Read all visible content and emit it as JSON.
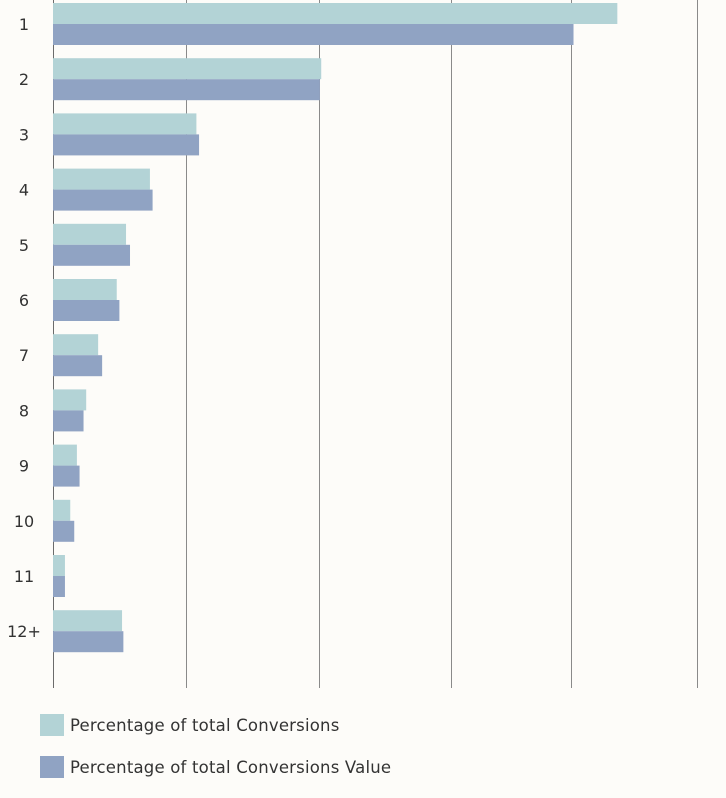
{
  "chart_data": {
    "type": "bar",
    "orientation": "horizontal",
    "categories": [
      "1",
      "2",
      "3",
      "4",
      "5",
      "6",
      "7",
      "8",
      "9",
      "10",
      "11",
      "12+"
    ],
    "series": [
      {
        "name": "Percentage of total Conversions",
        "color": "#b3d3d6",
        "values": [
          42.5,
          20.2,
          10.8,
          7.3,
          5.5,
          4.8,
          3.4,
          2.5,
          1.8,
          1.3,
          0.9,
          5.2
        ]
      },
      {
        "name": "Percentage of total Conversions Value",
        "color": "#90a3c3",
        "values": [
          39.2,
          20.1,
          11.0,
          7.5,
          5.8,
          5.0,
          3.7,
          2.3,
          2.0,
          1.6,
          0.9,
          5.3
        ]
      }
    ],
    "xlim": [
      0,
      48.5
    ],
    "gridlines": [
      0,
      10,
      20,
      30,
      39,
      48.5
    ],
    "grid": true,
    "legend_position": "bottom-left"
  }
}
